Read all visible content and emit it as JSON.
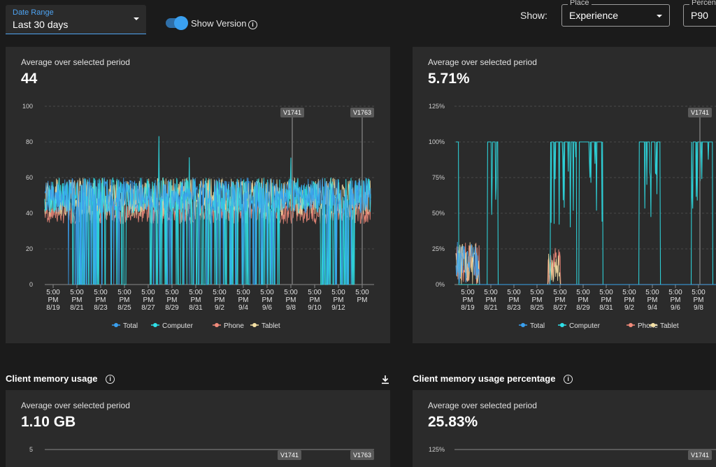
{
  "filters": {
    "date_range_label": "Date Range",
    "date_range_value": "Last 30 days",
    "show_version_label": "Show Version",
    "show_version_on": true,
    "show_label": "Show:",
    "place_label": "Place",
    "place_value": "Experience",
    "percentile_label": "Percent",
    "percentile_value": "P90"
  },
  "colors": {
    "total": "#3aa0f0",
    "computer": "#2fe0e8",
    "phone": "#f28b7b",
    "tablet": "#f5e1a4",
    "accent": "#4ea4f3"
  },
  "icons": {
    "info": "info-icon",
    "download": "download-icon",
    "dropdown": "caret-down-icon"
  },
  "legend": [
    "Total",
    "Computer",
    "Phone",
    "Tablet"
  ],
  "x_ticks": [
    [
      "5:00",
      "PM",
      "8/19"
    ],
    [
      "5:00",
      "PM",
      "8/21"
    ],
    [
      "5:00",
      "PM",
      "8/23"
    ],
    [
      "5:00",
      "PM",
      "8/25"
    ],
    [
      "5:00",
      "PM",
      "8/27"
    ],
    [
      "5:00",
      "PM",
      "8/29"
    ],
    [
      "5:00",
      "PM",
      "8/31"
    ],
    [
      "5:00",
      "PM",
      "9/2"
    ],
    [
      "5:00",
      "PM",
      "9/4"
    ],
    [
      "5:00",
      "PM",
      "9/6"
    ],
    [
      "5:00",
      "PM",
      "9/8"
    ],
    [
      "5:00",
      "PM",
      "9/10"
    ],
    [
      "5:00",
      "PM",
      "9/12"
    ],
    [
      "5:00",
      "PM",
      ""
    ]
  ],
  "panels": {
    "p1": {
      "subtitle": "Average over selected period",
      "value": "44"
    },
    "p2": {
      "subtitle": "Average over selected period",
      "value": "5.71%"
    },
    "p3": {
      "subtitle": "Average over selected period",
      "value": "1.10 GB"
    },
    "p4": {
      "subtitle": "Average over selected period",
      "value": "25.83%"
    }
  },
  "sections": {
    "memory_title": "Client memory usage",
    "memory_pct_title": "Client memory usage percentage"
  },
  "chart_data": [
    {
      "type": "line",
      "y_ticks": [
        "0",
        "20",
        "40",
        "60",
        "80",
        "100"
      ],
      "ylim": [
        0,
        100
      ],
      "series": [
        {
          "name": "Total"
        },
        {
          "name": "Computer"
        },
        {
          "name": "Phone"
        },
        {
          "name": "Tablet"
        }
      ],
      "versions": [
        {
          "label": "V1741",
          "x_day": 20.9
        },
        {
          "label": "V1763",
          "x_day": 29.0
        }
      ],
      "typical_range": [
        30,
        60
      ]
    },
    {
      "type": "line",
      "y_ticks": [
        "0%",
        "25%",
        "50%",
        "75%",
        "100%",
        "125%"
      ],
      "ylim": [
        0,
        125
      ],
      "series": [
        {
          "name": "Total"
        },
        {
          "name": "Computer"
        },
        {
          "name": "Phone"
        },
        {
          "name": "Tablet"
        }
      ],
      "versions": [
        {
          "label": "V1741",
          "x_day": 20.9
        }
      ],
      "plateaus_at": 100
    },
    {
      "type": "line",
      "y_ticks": [
        "5"
      ],
      "versions": [
        {
          "label": "V1741"
        },
        {
          "label": "V1763"
        }
      ]
    },
    {
      "type": "line",
      "y_ticks": [
        "125%"
      ],
      "versions": [
        {
          "label": "V1741"
        }
      ]
    }
  ]
}
